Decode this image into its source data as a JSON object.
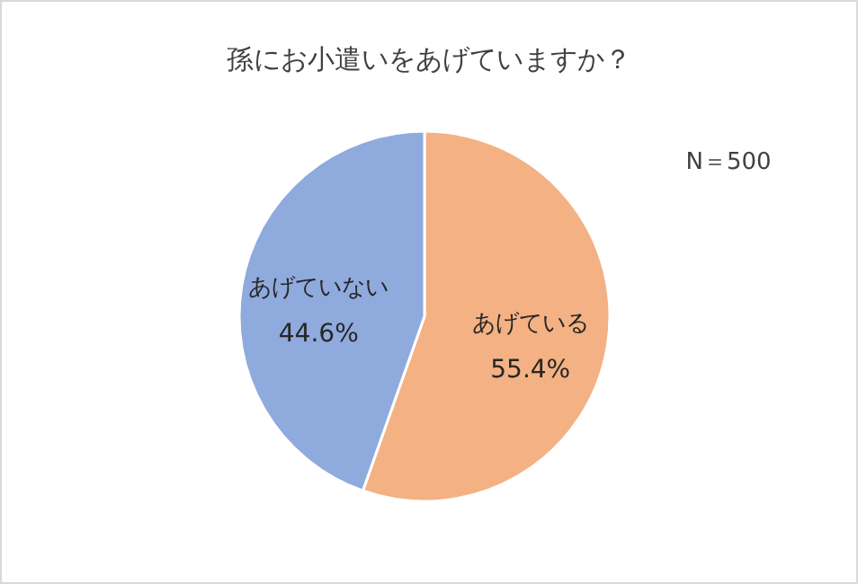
{
  "chart_data": {
    "type": "pie",
    "title": "孫にお小遣いをあげていますか？",
    "annotations": [
      "N＝500"
    ],
    "categories": [
      "あげている",
      "あげていない"
    ],
    "values": [
      55.4,
      44.6
    ],
    "colors": [
      "#f4b183",
      "#8faadc"
    ],
    "value_labels": [
      "55.4%",
      "44.6%"
    ]
  }
}
